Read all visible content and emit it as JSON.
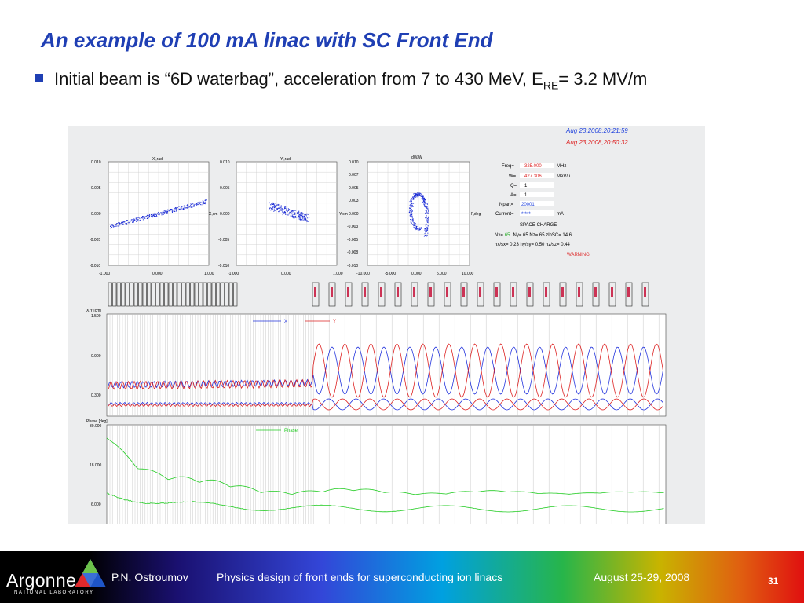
{
  "slide": {
    "title": "An example of 100 mA linac with SC Front End",
    "bullet_text": "Initial beam is “6D waterbag”, acceleration from 7 to 430 MeV, E",
    "bullet_sub": "RE",
    "bullet_tail": "= 3.2 MV/m"
  },
  "screenshot": {
    "dates": [
      "Aug 23,2008,20:21:59",
      "Aug 23,2008,20:50:32"
    ],
    "phase_plots": [
      {
        "title": "X',rad",
        "ylabel": "X,cm",
        "y_ticks": [
          "0.010",
          "0.005",
          "0.000",
          "-0.005",
          "-0.010"
        ],
        "x_ticks": [
          "-1.000",
          "0.000",
          "1.000"
        ]
      },
      {
        "title": "Y',rad",
        "ylabel": "Y,cm",
        "y_ticks": [
          "0.010",
          "0.005",
          "0.000",
          "-0.005",
          "-0.010"
        ],
        "x_ticks": [
          "-1.000",
          "0.000",
          "1.000"
        ]
      },
      {
        "title": "dW/W",
        "ylabel": "F,deg",
        "y_ticks": [
          "0.010",
          "0.007",
          "0.005",
          "0.003",
          "0.000",
          "-0.003",
          "-0.005",
          "-0.008",
          "-0.010"
        ],
        "x_ticks": [
          "-10.000",
          "-5.000",
          "0.000",
          "5.000",
          "10.000"
        ]
      }
    ],
    "params": {
      "freq_label": "Freq=",
      "freq_value": "325.000",
      "freq_unit": "MHz",
      "w_label": "W=",
      "w_value": "427.306",
      "w_unit": "MeV/u",
      "q_label": "Q=",
      "q_value": "1",
      "a_label": "A=",
      "a_value": "1",
      "npart_label": "Npart=",
      "npart_value": "20001",
      "current_label": "Current=",
      "current_value": "*****",
      "current_unit": "mA",
      "space_charge": "SPACE CHARGE",
      "nx_line_a": "Nx=",
      "nx_value": "65",
      "nx_line_b": "Ny= 65   Nz= 65   zlhSC= 14.6",
      "ratio_line": "hx/sx=   0.23   hy/sy=   0.50  hz/sz=   0.44",
      "warning": "WARNING"
    },
    "envelope_plot": {
      "ylabel": "X,Y [cm]",
      "y_ticks": [
        "1.500",
        "0.900",
        "0.300"
      ],
      "legend": [
        "X",
        "Y"
      ]
    },
    "phase_plot": {
      "ylabel": "Phase [deg]",
      "y_ticks": [
        "30.000",
        "18.000",
        "6.000"
      ],
      "legend": [
        "Phase"
      ]
    },
    "colors": {
      "x_series": "#2233dd",
      "y_series": "#dd2222",
      "phase_series": "#22cc22"
    }
  },
  "footer": {
    "logo": "Argonne",
    "logo_sub": "NATIONAL LABORATORY",
    "author": "P.N. Ostroumov",
    "talk_title": "Physics design of front ends for superconducting ion linacs",
    "date": "August 25-29, 2008",
    "page": "31"
  }
}
